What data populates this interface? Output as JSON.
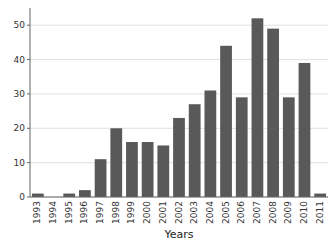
{
  "chart_data": {
    "type": "bar",
    "xlabel": "Years",
    "categories": [
      "1993",
      "1994",
      "1995",
      "1996",
      "1997",
      "1998",
      "1999",
      "2000",
      "2001",
      "2002",
      "2003",
      "2004",
      "2005",
      "2006",
      "2007",
      "2008",
      "2009",
      "2010",
      "2011"
    ],
    "values": [
      1,
      0,
      1,
      2,
      11,
      20,
      16,
      16,
      15,
      23,
      27,
      31,
      44,
      29,
      52,
      49,
      29,
      39,
      1
    ],
    "color": "#595959",
    "ylim": [
      0,
      55
    ],
    "yticks": [
      0,
      10,
      20,
      30,
      40,
      50
    ],
    "grid": true
  }
}
